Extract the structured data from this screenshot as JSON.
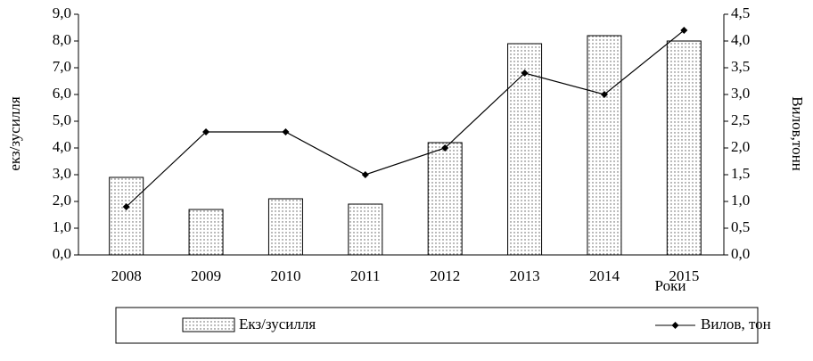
{
  "chart_data": {
    "type": "bar-line",
    "categories": [
      "2008",
      "2009",
      "2010",
      "2011",
      "2012",
      "2013",
      "2014",
      "2015"
    ],
    "series": [
      {
        "name": "Екз/зусилля",
        "type": "bar",
        "axis": "y",
        "values": [
          2.9,
          1.7,
          2.1,
          1.9,
          4.2,
          7.9,
          8.2,
          8.0
        ]
      },
      {
        "name": "Вилов, тон",
        "type": "line",
        "axis": "y2",
        "color": "#000000",
        "values": [
          0.9,
          2.3,
          2.3,
          1.5,
          2.0,
          3.4,
          3.0,
          4.2
        ]
      }
    ],
    "ylabel": "екз/зусилля",
    "y2label": "Вилов,тонн",
    "xlabel": "Роки",
    "ylim": [
      0,
      9
    ],
    "yticks": [
      {
        "value": 0,
        "label": "0,0"
      },
      {
        "value": 1,
        "label": "1,0"
      },
      {
        "value": 2,
        "label": "2,0"
      },
      {
        "value": 3,
        "label": "3,0"
      },
      {
        "value": 4,
        "label": "4,0"
      },
      {
        "value": 5,
        "label": "5,0"
      },
      {
        "value": 6,
        "label": "6,0"
      },
      {
        "value": 7,
        "label": "7,0"
      },
      {
        "value": 8,
        "label": "8,0"
      },
      {
        "value": 9,
        "label": "9,0"
      }
    ],
    "y2lim": [
      0,
      4.5
    ],
    "y2ticks": [
      {
        "value": 0,
        "label": "0,0"
      },
      {
        "value": 0.5,
        "label": "0,5"
      },
      {
        "value": 1,
        "label": "1,0"
      },
      {
        "value": 1.5,
        "label": "1,5"
      },
      {
        "value": 2,
        "label": "2,0"
      },
      {
        "value": 2.5,
        "label": "2,5"
      },
      {
        "value": 3,
        "label": "3,0"
      },
      {
        "value": 3.5,
        "label": "3,5"
      },
      {
        "value": 4,
        "label": "4,0"
      },
      {
        "value": 4.5,
        "label": "4,5"
      }
    ],
    "legend": "bottom"
  }
}
